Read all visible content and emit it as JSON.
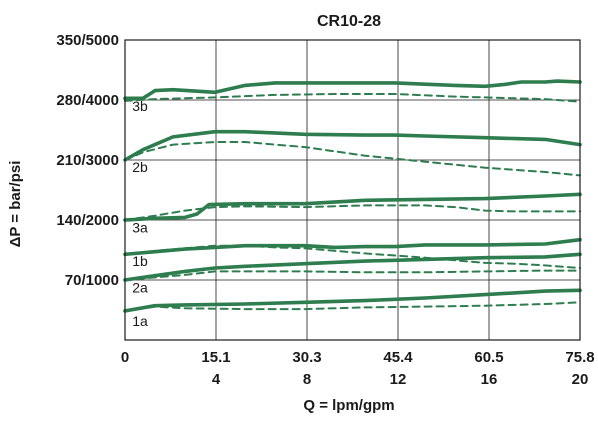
{
  "chart_data": {
    "type": "line",
    "title": "CR10-28",
    "xlabel": "Q = lpm/gpm",
    "ylabel": "ΔP = bar/psi",
    "x_ticks_lpm": [
      "0",
      "15.1",
      "30.3",
      "45.4",
      "60.5",
      "75.8"
    ],
    "x_ticks_gpm": [
      "",
      "4",
      "8",
      "12",
      "16",
      "20"
    ],
    "y_ticks": [
      "350/5000",
      "280/4000",
      "210/3000",
      "140/2000",
      "70/1000"
    ],
    "xlim": [
      0,
      75.8
    ],
    "ylim": [
      0,
      350
    ],
    "grid": true,
    "line_color": "#2e7d4f",
    "series": [
      {
        "name": "3b",
        "style": "solid",
        "label_at": [
          1.2,
          273
        ],
        "values": [
          [
            0,
            282
          ],
          [
            3,
            282
          ],
          [
            5,
            291
          ],
          [
            8,
            292
          ],
          [
            15,
            289
          ],
          [
            20,
            297
          ],
          [
            25,
            300
          ],
          [
            35,
            300
          ],
          [
            45,
            300
          ],
          [
            55,
            297
          ],
          [
            60,
            296
          ],
          [
            63,
            298
          ],
          [
            66,
            301
          ],
          [
            70,
            301
          ],
          [
            72,
            302
          ],
          [
            75.8,
            301
          ]
        ]
      },
      {
        "name": "3b",
        "style": "dashed",
        "values": [
          [
            0,
            279
          ],
          [
            5,
            281
          ],
          [
            15,
            283
          ],
          [
            25,
            286
          ],
          [
            35,
            287
          ],
          [
            45,
            287
          ],
          [
            55,
            284
          ],
          [
            60,
            283
          ],
          [
            65,
            282
          ],
          [
            70,
            281
          ],
          [
            75.8,
            278
          ]
        ]
      },
      {
        "name": "2b",
        "style": "solid",
        "values": [
          [
            0,
            210
          ],
          [
            3,
            222
          ],
          [
            8,
            237
          ],
          [
            15,
            243
          ],
          [
            20,
            243
          ],
          [
            30,
            240
          ],
          [
            40,
            239
          ],
          [
            45,
            239
          ],
          [
            50,
            238
          ],
          [
            60,
            236
          ],
          [
            65,
            235
          ],
          [
            70,
            234
          ],
          [
            75.8,
            228
          ]
        ]
      },
      {
        "name": "2b",
        "style": "dashed",
        "label_at": [
          1.2,
          202
        ],
        "values": [
          [
            0,
            210
          ],
          [
            3,
            219
          ],
          [
            8,
            228
          ],
          [
            15,
            231
          ],
          [
            20,
            231
          ],
          [
            25,
            228
          ],
          [
            30,
            225
          ],
          [
            35,
            220
          ],
          [
            40,
            215
          ],
          [
            50,
            208
          ],
          [
            60,
            201
          ],
          [
            70,
            196
          ],
          [
            75.8,
            192
          ]
        ]
      },
      {
        "name": "3a",
        "style": "solid",
        "values": [
          [
            0,
            140
          ],
          [
            5,
            142
          ],
          [
            10,
            143
          ],
          [
            12,
            147
          ],
          [
            14,
            158
          ],
          [
            20,
            159
          ],
          [
            30,
            159
          ],
          [
            40,
            163
          ],
          [
            50,
            164
          ],
          [
            60,
            165
          ],
          [
            70,
            168
          ],
          [
            75.8,
            170
          ]
        ]
      },
      {
        "name": "3a",
        "style": "dashed",
        "label_at": [
          1.2,
          131
        ],
        "values": [
          [
            0,
            140
          ],
          [
            5,
            145
          ],
          [
            10,
            151
          ],
          [
            15,
            155
          ],
          [
            20,
            156
          ],
          [
            30,
            155
          ],
          [
            40,
            157
          ],
          [
            50,
            157
          ],
          [
            55,
            155
          ],
          [
            60,
            151
          ],
          [
            65,
            150
          ],
          [
            75.8,
            150
          ]
        ]
      },
      {
        "name": "1b",
        "style": "solid",
        "values": [
          [
            0,
            100
          ],
          [
            5,
            103
          ],
          [
            10,
            106
          ],
          [
            15,
            108
          ],
          [
            20,
            110
          ],
          [
            30,
            110
          ],
          [
            35,
            108
          ],
          [
            40,
            109
          ],
          [
            45,
            109
          ],
          [
            50,
            111
          ],
          [
            60,
            111
          ],
          [
            70,
            112
          ],
          [
            75.8,
            117
          ]
        ]
      },
      {
        "name": "1b",
        "style": "dashed",
        "label_at": [
          1.2,
          92
        ],
        "values": [
          [
            0,
            100
          ],
          [
            5,
            104
          ],
          [
            10,
            107
          ],
          [
            15,
            110
          ],
          [
            20,
            110
          ],
          [
            25,
            108
          ],
          [
            30,
            107
          ],
          [
            40,
            101
          ],
          [
            50,
            96
          ],
          [
            60,
            90
          ],
          [
            65,
            89
          ],
          [
            70,
            87
          ],
          [
            75.8,
            84
          ]
        ]
      },
      {
        "name": "2a",
        "style": "solid",
        "values": [
          [
            0,
            70
          ],
          [
            5,
            75
          ],
          [
            10,
            80
          ],
          [
            15,
            84
          ],
          [
            20,
            86
          ],
          [
            30,
            89
          ],
          [
            40,
            92
          ],
          [
            50,
            94
          ],
          [
            60,
            96
          ],
          [
            70,
            97
          ],
          [
            75.8,
            100
          ]
        ]
      },
      {
        "name": "2a",
        "style": "dashed",
        "label_at": [
          1.2,
          61
        ],
        "values": [
          [
            0,
            70
          ],
          [
            5,
            73
          ],
          [
            10,
            76
          ],
          [
            15,
            80
          ],
          [
            20,
            80
          ],
          [
            30,
            80
          ],
          [
            40,
            79
          ],
          [
            50,
            79
          ],
          [
            60,
            80
          ],
          [
            70,
            81
          ],
          [
            75.8,
            81
          ]
        ]
      },
      {
        "name": "1a",
        "style": "solid",
        "values": [
          [
            0,
            34
          ],
          [
            5,
            40
          ],
          [
            10,
            41
          ],
          [
            20,
            42
          ],
          [
            30,
            44
          ],
          [
            40,
            46
          ],
          [
            50,
            49
          ],
          [
            60,
            53
          ],
          [
            70,
            57
          ],
          [
            75.8,
            58
          ]
        ]
      },
      {
        "name": "1a",
        "style": "dashed",
        "label_at": [
          1.2,
          22
        ],
        "values": [
          [
            0,
            34
          ],
          [
            5,
            39
          ],
          [
            10,
            37
          ],
          [
            20,
            36
          ],
          [
            30,
            36
          ],
          [
            40,
            38
          ],
          [
            50,
            39
          ],
          [
            60,
            40
          ],
          [
            70,
            42
          ],
          [
            75.8,
            44
          ]
        ]
      }
    ]
  }
}
